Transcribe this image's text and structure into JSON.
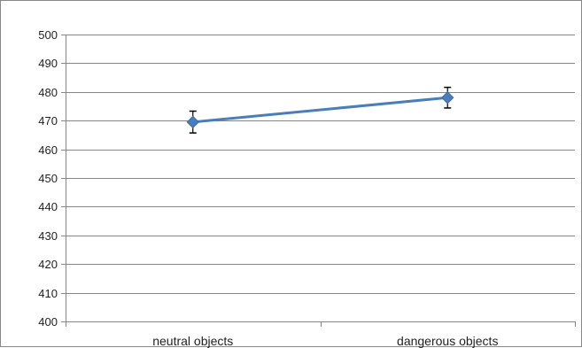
{
  "chart_data": {
    "type": "line",
    "categories": [
      "neutral objects",
      "dangerous objects"
    ],
    "series": [
      {
        "values": [
          469.5,
          478.0
        ],
        "error": [
          3.8,
          3.6
        ],
        "color": "#4a7ebb"
      }
    ],
    "ylim": [
      400,
      500
    ],
    "yticks": [
      400,
      410,
      420,
      430,
      440,
      450,
      460,
      470,
      480,
      490,
      500
    ],
    "grid": true,
    "legend": "none",
    "gridline_color": "#868686",
    "marker": "diamond"
  }
}
